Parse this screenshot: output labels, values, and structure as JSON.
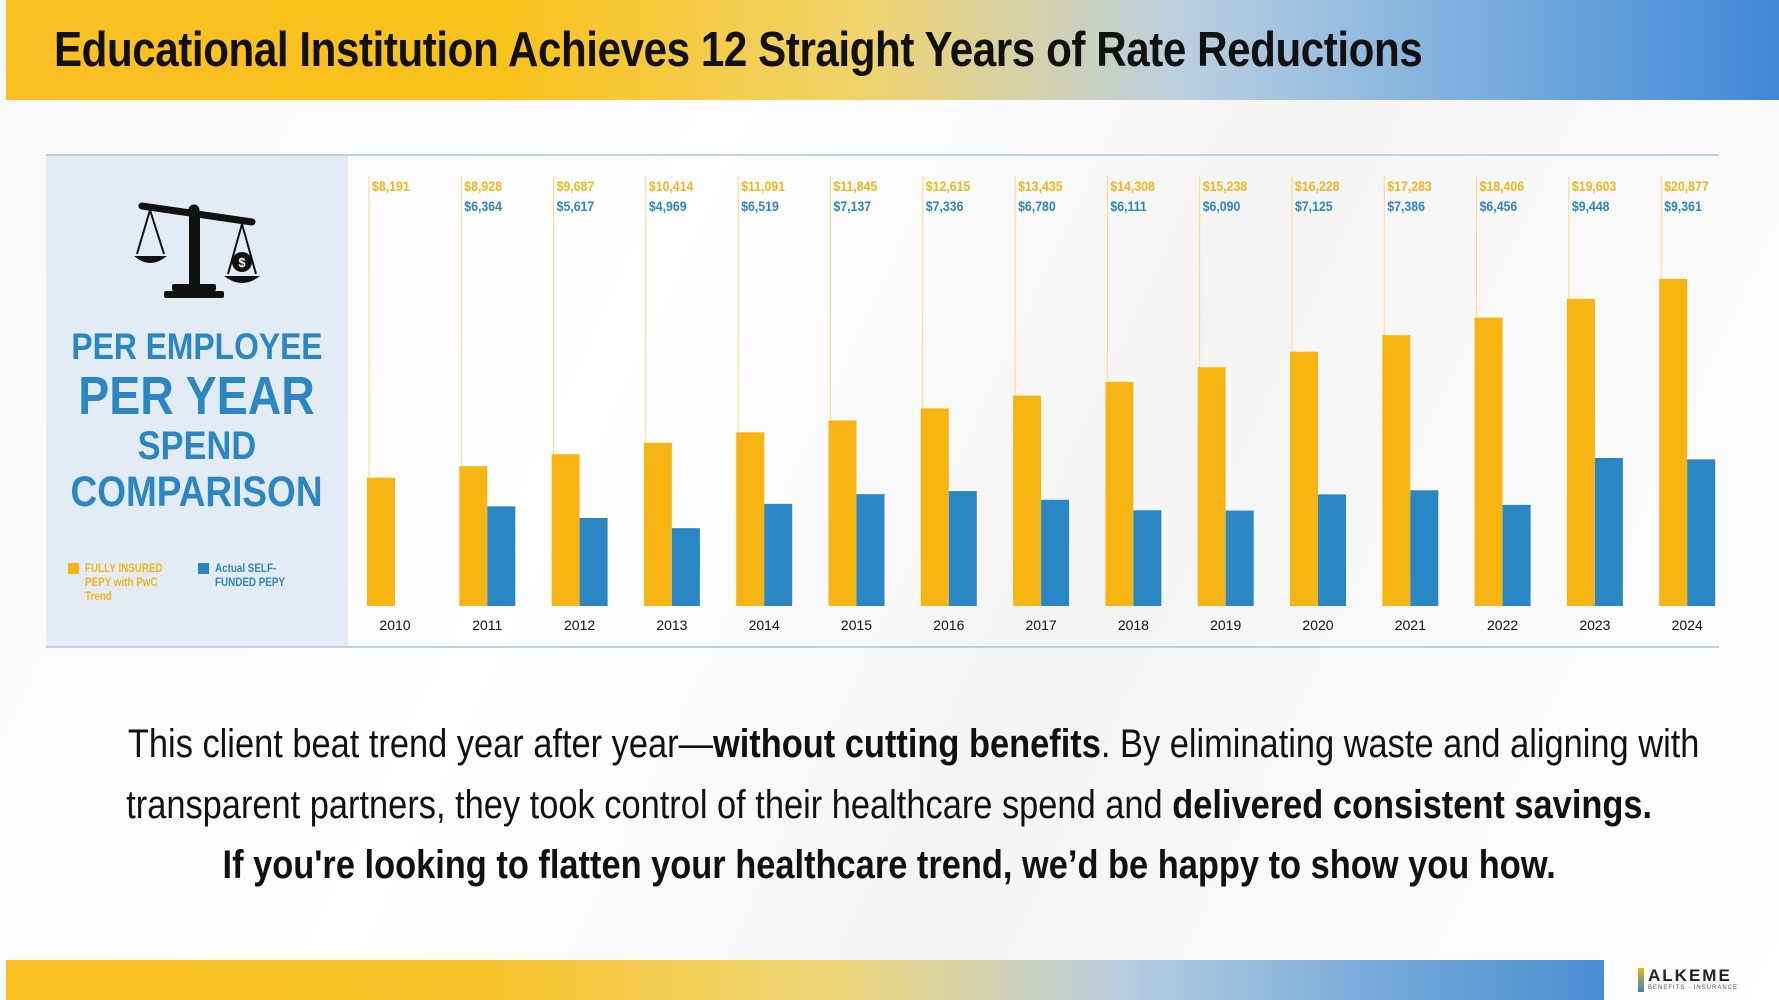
{
  "title": "Educational Institution Achieves 12 Straight Years of Rate Reductions",
  "panel": {
    "line1": "PER EMPLOYEE",
    "line2": "PER YEAR",
    "line3": "SPEND",
    "line4": "COMPARISON",
    "legend_insured": "FULLY INSURED PEPY with PwC Trend",
    "legend_selffunded": "Actual SELF-FUNDED PEPY"
  },
  "colors": {
    "insured": "#f7b514",
    "selffunded": "#2b87c4",
    "insured_label": "#f3b51b",
    "selffunded_label": "#2b87c4"
  },
  "icons": {
    "panel_icon": "scales-of-justice-icon"
  },
  "body": {
    "line1_pre": "This client beat trend year after year—",
    "line1_bold": "without cutting benefits",
    "line1_post": ". By eliminating waste and aligning with",
    "line2_pre": "transparent partners, they took control of their healthcare spend and ",
    "line2_bold": "delivered consistent savings.",
    "line3": "If you're looking to flatten your healthcare trend, we’d be happy to show you how."
  },
  "logo": {
    "name": "ALKEME",
    "sub": "BENEFITS · INSURANCE"
  },
  "chart_data": {
    "type": "bar",
    "categories": [
      "2010",
      "2011",
      "2012",
      "2013",
      "2014",
      "2015",
      "2016",
      "2017",
      "2018",
      "2019",
      "2020",
      "2021",
      "2022",
      "2023",
      "2024"
    ],
    "series": [
      {
        "name": "FULLY INSURED PEPY with PwC Trend",
        "values": [
          8191,
          8928,
          9687,
          10414,
          11091,
          11845,
          12615,
          13435,
          14308,
          15238,
          16228,
          17283,
          18406,
          19603,
          20877
        ],
        "labels": [
          "$8,191",
          "$8,928",
          "$9,687",
          "$10,414",
          "$11,091",
          "$11,845",
          "$12,615",
          "$13,435",
          "$14,308",
          "$15,238",
          "$16,228",
          "$17,283",
          "$18,406",
          "$19,603",
          "$20,877"
        ]
      },
      {
        "name": "Actual SELF-FUNDED PEPY",
        "values": [
          null,
          6364,
          5617,
          4969,
          6519,
          7137,
          7336,
          6780,
          6111,
          6090,
          7125,
          7386,
          6456,
          9448,
          9361
        ],
        "labels": [
          "",
          "$6,364",
          "$5,617",
          "$4,969",
          "$6,519",
          "$7,137",
          "$7,336",
          "$6,780",
          "$6,111",
          "$6,090",
          "$7,125",
          "$7,386",
          "$6,456",
          "$9,448",
          "$9,361"
        ]
      }
    ],
    "title": "PER EMPLOYEE PER YEAR SPEND COMPARISON",
    "xlabel": "",
    "ylabel": "",
    "ylim": [
      0,
      21000
    ],
    "grid": false,
    "legend": "left-panel-bottom"
  }
}
